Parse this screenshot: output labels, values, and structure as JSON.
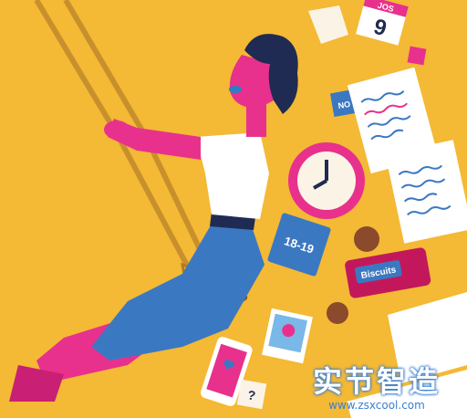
{
  "artwork": {
    "calendar_month": "JOS",
    "calendar_day": "9",
    "note_label": "NO",
    "notebook_label": "18-19",
    "biscuit_label": "Biscuits"
  },
  "watermark": {
    "cjk_text": "实节智造",
    "url": "www.zsxcool.com"
  },
  "colors": {
    "background": "#f4b935",
    "skin_pink": "#e8318c",
    "skirt_blue": "#3b78c2",
    "hair_navy": "#1f2b52",
    "rope_tan": "#c8902c",
    "watermark_blue": "#3a7fd0"
  }
}
